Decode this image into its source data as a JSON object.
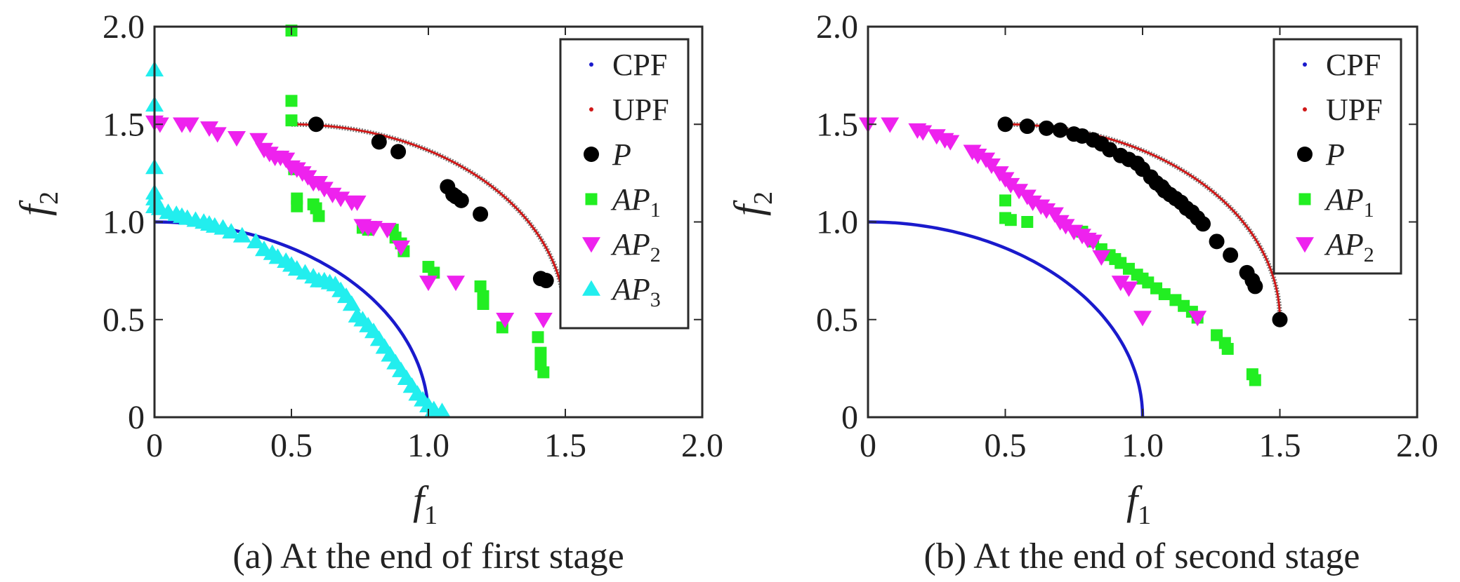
{
  "chart_data": [
    {
      "type": "scatter",
      "caption": "(a) At the end of first stage",
      "xlabel": "f1",
      "ylabel": "f2",
      "xlim": [
        0,
        2
      ],
      "ylim": [
        0,
        2
      ],
      "x_ticks": [
        "0",
        "0.5",
        "1.0",
        "1.5",
        "2.0"
      ],
      "y_ticks": [
        "0",
        "0.5",
        "1.0",
        "1.5",
        "2.0"
      ],
      "grid": false,
      "legend_position": "top-right",
      "series": [
        {
          "name": "CPF",
          "marker": "line",
          "color": "#1a1acc",
          "curve": {
            "type": "circle",
            "center": [
              0,
              0
            ],
            "radius": 1,
            "from": [
              0,
              1
            ],
            "to": [
              1,
              0
            ]
          }
        },
        {
          "name": "UPF",
          "marker": "line",
          "color": "#d01818",
          "curve": {
            "type": "circle",
            "center": [
              0.5,
              0.5
            ],
            "radius": 1,
            "from": [
              0.5,
              1.5
            ],
            "to": [
              1.5,
              0.5
            ]
          }
        },
        {
          "name": "P",
          "marker": "circle",
          "color": "#000000",
          "x": [
            0.59,
            0.82,
            0.89,
            1.07,
            1.09,
            1.1,
            1.12,
            1.19,
            1.41,
            1.43
          ],
          "y": [
            1.5,
            1.41,
            1.36,
            1.18,
            1.14,
            1.13,
            1.11,
            1.04,
            0.71,
            0.7
          ]
        },
        {
          "name": "AP1",
          "marker": "square",
          "color": "#22ee22",
          "x": [
            0.5,
            0.5,
            0.5,
            0.51,
            0.52,
            0.52,
            0.58,
            0.59,
            0.6,
            0.76,
            0.78,
            0.87,
            0.88,
            0.9,
            0.91,
            1.0,
            1.02,
            1.19,
            1.2,
            1.2,
            1.27,
            1.4,
            1.41,
            1.41,
            1.42
          ],
          "y": [
            1.98,
            1.62,
            1.52,
            1.27,
            1.12,
            1.08,
            1.09,
            1.07,
            1.03,
            0.97,
            0.96,
            0.96,
            0.92,
            0.89,
            0.85,
            0.77,
            0.74,
            0.67,
            0.62,
            0.58,
            0.46,
            0.41,
            0.33,
            0.27,
            0.23
          ]
        },
        {
          "name": "AP2",
          "marker": "triangle-down",
          "color": "#ee22ee",
          "x": [
            0.0,
            0.02,
            0.1,
            0.13,
            0.2,
            0.23,
            0.3,
            0.38,
            0.4,
            0.42,
            0.44,
            0.46,
            0.48,
            0.5,
            0.52,
            0.54,
            0.56,
            0.58,
            0.6,
            0.62,
            0.65,
            0.68,
            0.72,
            0.74,
            0.76,
            0.78,
            0.8,
            0.85,
            0.9,
            1.0,
            1.1,
            1.28,
            1.42
          ],
          "y": [
            1.51,
            1.5,
            1.5,
            1.5,
            1.48,
            1.45,
            1.43,
            1.42,
            1.37,
            1.35,
            1.33,
            1.33,
            1.32,
            1.28,
            1.27,
            1.25,
            1.23,
            1.2,
            1.2,
            1.17,
            1.14,
            1.12,
            1.1,
            1.1,
            0.98,
            0.97,
            0.97,
            0.96,
            0.87,
            0.69,
            0.69,
            0.5,
            0.5
          ]
        },
        {
          "name": "AP3",
          "marker": "triangle-up",
          "color": "#22eeee",
          "x": [
            0.0,
            0.0,
            0.0,
            0.0,
            0.0,
            0.0,
            0.02,
            0.05,
            0.08,
            0.1,
            0.12,
            0.15,
            0.18,
            0.2,
            0.22,
            0.25,
            0.28,
            0.32,
            0.37,
            0.4,
            0.43,
            0.45,
            0.48,
            0.5,
            0.52,
            0.55,
            0.58,
            0.6,
            0.62,
            0.64,
            0.66,
            0.68,
            0.7,
            0.72,
            0.74,
            0.76,
            0.78,
            0.8,
            0.82,
            0.84,
            0.86,
            0.88,
            0.9,
            0.92,
            0.94,
            0.96,
            0.98,
            1.0,
            1.02,
            1.05
          ],
          "y": [
            1.78,
            1.6,
            1.28,
            1.15,
            1.12,
            1.08,
            1.07,
            1.05,
            1.04,
            1.03,
            1.02,
            1.01,
            1.0,
            0.99,
            0.98,
            0.97,
            0.95,
            0.93,
            0.9,
            0.86,
            0.84,
            0.82,
            0.8,
            0.78,
            0.76,
            0.74,
            0.72,
            0.7,
            0.7,
            0.69,
            0.68,
            0.65,
            0.62,
            0.58,
            0.52,
            0.5,
            0.47,
            0.44,
            0.4,
            0.36,
            0.32,
            0.28,
            0.24,
            0.2,
            0.16,
            0.12,
            0.09,
            0.06,
            0.04,
            0.03
          ]
        }
      ]
    },
    {
      "type": "scatter",
      "caption": "(b) At the end of second stage",
      "xlabel": "f1",
      "ylabel": "f2",
      "xlim": [
        0,
        2
      ],
      "ylim": [
        0,
        2
      ],
      "x_ticks": [
        "0",
        "0.5",
        "1.0",
        "1.5",
        "2.0"
      ],
      "y_ticks": [
        "0",
        "0.5",
        "1.0",
        "1.5",
        "2.0"
      ],
      "grid": false,
      "legend_position": "top-right",
      "series": [
        {
          "name": "CPF",
          "marker": "line",
          "color": "#1a1acc",
          "curve": {
            "type": "circle",
            "center": [
              0,
              0
            ],
            "radius": 1,
            "from": [
              0,
              1
            ],
            "to": [
              1,
              0
            ]
          }
        },
        {
          "name": "UPF",
          "marker": "line",
          "color": "#d01818",
          "curve": {
            "type": "circle",
            "center": [
              0.5,
              0.5
            ],
            "radius": 1,
            "from": [
              0.5,
              1.5
            ],
            "to": [
              1.5,
              0.5
            ]
          }
        },
        {
          "name": "P",
          "marker": "circle",
          "color": "#000000",
          "x": [
            0.5,
            0.58,
            0.65,
            0.7,
            0.75,
            0.78,
            0.82,
            0.85,
            0.88,
            0.92,
            0.95,
            0.98,
            1.0,
            1.03,
            1.05,
            1.07,
            1.08,
            1.1,
            1.12,
            1.14,
            1.16,
            1.18,
            1.2,
            1.22,
            1.27,
            1.32,
            1.38,
            1.4,
            1.41,
            1.5
          ],
          "y": [
            1.5,
            1.49,
            1.48,
            1.47,
            1.45,
            1.44,
            1.42,
            1.4,
            1.37,
            1.34,
            1.32,
            1.3,
            1.27,
            1.23,
            1.2,
            1.18,
            1.16,
            1.14,
            1.12,
            1.1,
            1.07,
            1.05,
            1.02,
            0.99,
            0.9,
            0.83,
            0.74,
            0.7,
            0.67,
            0.5
          ]
        },
        {
          "name": "AP1",
          "marker": "square",
          "color": "#22ee22",
          "x": [
            0.5,
            0.5,
            0.52,
            0.58,
            0.78,
            0.82,
            0.85,
            0.88,
            0.9,
            0.92,
            0.95,
            0.98,
            1.0,
            1.02,
            1.05,
            1.08,
            1.12,
            1.15,
            1.18,
            1.2,
            1.27,
            1.3,
            1.31,
            1.4,
            1.41
          ],
          "y": [
            1.11,
            1.02,
            1.01,
            1.0,
            0.95,
            0.9,
            0.86,
            0.83,
            0.81,
            0.79,
            0.76,
            0.73,
            0.71,
            0.69,
            0.66,
            0.63,
            0.6,
            0.57,
            0.54,
            0.51,
            0.42,
            0.38,
            0.35,
            0.22,
            0.19
          ]
        },
        {
          "name": "AP2",
          "marker": "triangle-down",
          "color": "#ee22ee",
          "x": [
            0.0,
            0.08,
            0.18,
            0.2,
            0.25,
            0.28,
            0.3,
            0.38,
            0.4,
            0.43,
            0.45,
            0.48,
            0.5,
            0.52,
            0.55,
            0.58,
            0.6,
            0.63,
            0.65,
            0.68,
            0.7,
            0.72,
            0.75,
            0.78,
            0.8,
            0.82,
            0.85,
            0.92,
            0.95,
            1.0,
            1.2
          ],
          "y": [
            1.5,
            1.5,
            1.47,
            1.46,
            1.44,
            1.42,
            1.41,
            1.36,
            1.34,
            1.32,
            1.29,
            1.25,
            1.22,
            1.19,
            1.16,
            1.13,
            1.1,
            1.08,
            1.06,
            1.04,
            1.0,
            0.98,
            0.95,
            0.93,
            0.91,
            0.9,
            0.82,
            0.69,
            0.66,
            0.51,
            0.51
          ]
        }
      ]
    }
  ]
}
